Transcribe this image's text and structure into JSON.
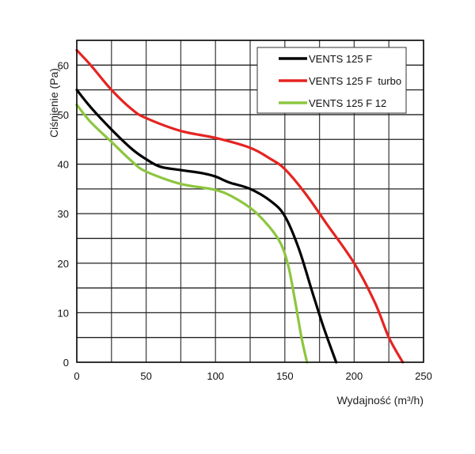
{
  "chart_data": {
    "type": "line",
    "title": "",
    "xlabel": "Wydajność (m³/h)",
    "ylabel": "Ciśnienie (Pa)",
    "xlim": [
      0,
      250
    ],
    "ylim": [
      0,
      65
    ],
    "x_ticks": [
      0,
      50,
      100,
      150,
      200,
      250
    ],
    "y_ticks": [
      0,
      10,
      20,
      30,
      40,
      50,
      60
    ],
    "x_grid_step": 25,
    "y_grid_step": 5,
    "grid": true,
    "legend_position": "top-right",
    "series": [
      {
        "name": "VENTS 125 F",
        "color": "#000000",
        "points": [
          [
            0,
            55
          ],
          [
            10,
            51.5
          ],
          [
            25,
            47
          ],
          [
            40,
            43
          ],
          [
            50,
            41
          ],
          [
            60,
            39.5
          ],
          [
            75,
            38.8
          ],
          [
            90,
            38.2
          ],
          [
            100,
            37.5
          ],
          [
            110,
            36.3
          ],
          [
            125,
            35
          ],
          [
            140,
            32.5
          ],
          [
            150,
            29.5
          ],
          [
            160,
            23
          ],
          [
            170,
            14
          ],
          [
            178,
            7
          ],
          [
            187,
            0
          ]
        ]
      },
      {
        "name": "VENTS 125 F  turbo",
        "color": "#e52421",
        "points": [
          [
            0,
            63
          ],
          [
            10,
            60
          ],
          [
            25,
            55
          ],
          [
            40,
            51
          ],
          [
            50,
            49.3
          ],
          [
            75,
            46.7
          ],
          [
            100,
            45.3
          ],
          [
            125,
            43.3
          ],
          [
            140,
            41
          ],
          [
            150,
            39
          ],
          [
            165,
            34
          ],
          [
            180,
            28
          ],
          [
            200,
            20
          ],
          [
            215,
            12
          ],
          [
            225,
            5
          ],
          [
            235,
            0
          ]
        ]
      },
      {
        "name": "VENTS 125 F 12",
        "color": "#8dc63f",
        "points": [
          [
            0,
            52
          ],
          [
            10,
            48.5
          ],
          [
            25,
            44.5
          ],
          [
            40,
            40.5
          ],
          [
            50,
            38.5
          ],
          [
            75,
            36
          ],
          [
            100,
            34.8
          ],
          [
            115,
            33
          ],
          [
            130,
            30
          ],
          [
            145,
            25
          ],
          [
            152,
            20
          ],
          [
            157,
            13
          ],
          [
            162,
            5
          ],
          [
            166,
            0
          ]
        ]
      }
    ]
  }
}
